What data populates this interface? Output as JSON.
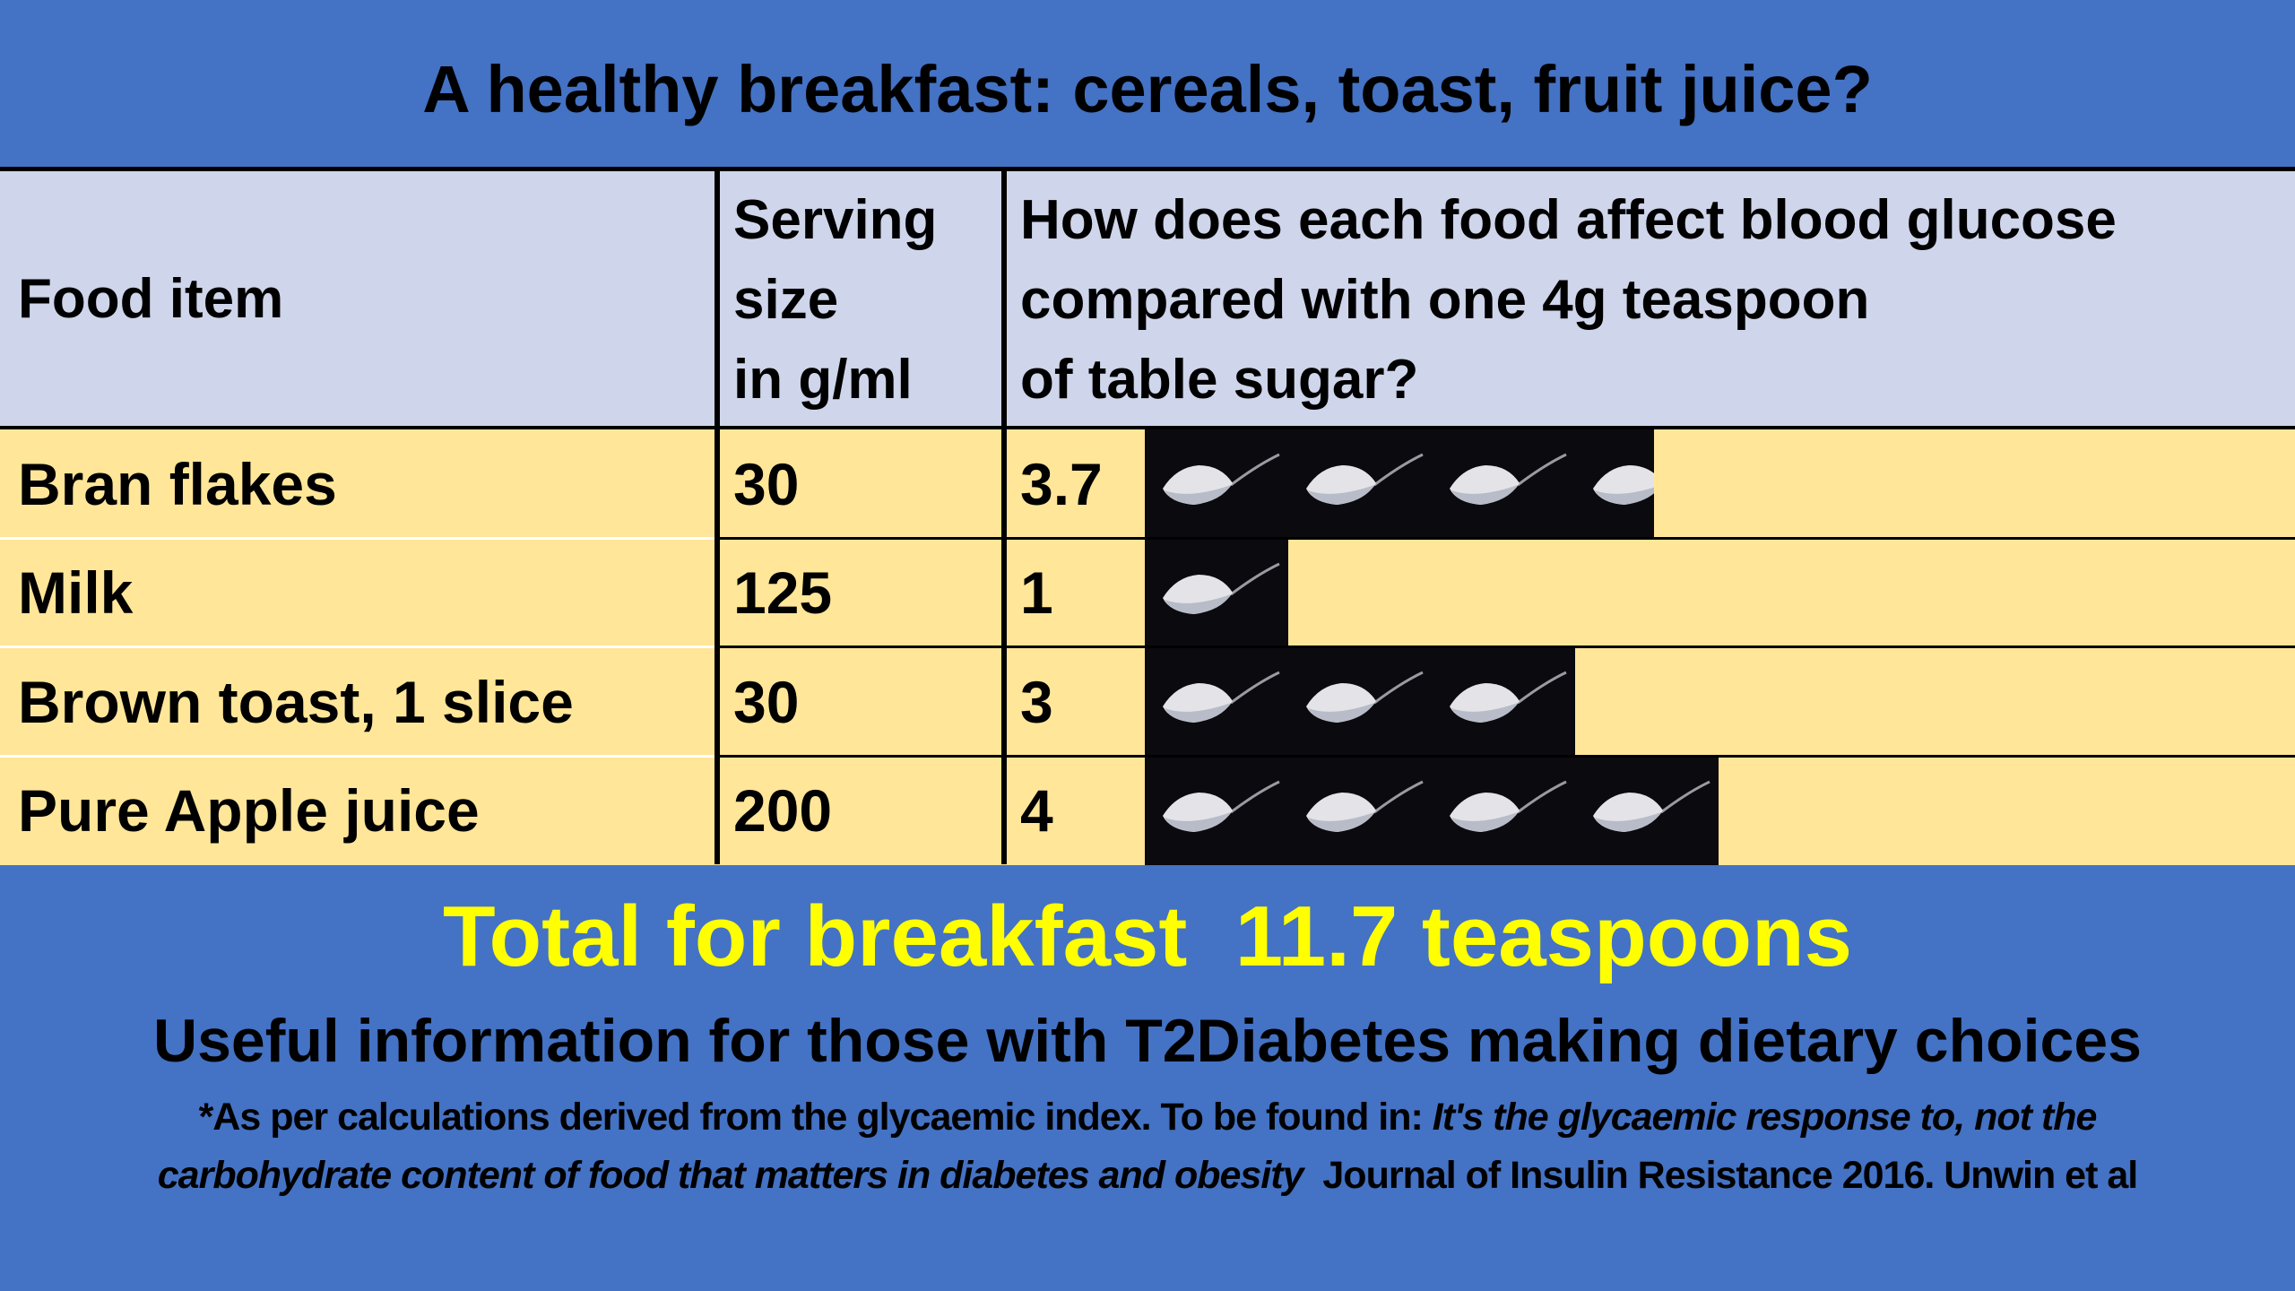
{
  "title": "A healthy breakfast: cereals, toast, fruit juice?",
  "header": {
    "food_item": "Food item",
    "serving_lines": [
      "Serving",
      "size",
      "in g/ml"
    ],
    "effect_lines": [
      "How does each food affect blood glucose",
      "compared with one 4g teaspoon",
      "of table sugar?"
    ]
  },
  "rows": [
    {
      "food": "Bran flakes",
      "serving": "30",
      "teaspoons": "3.7"
    },
    {
      "food": "Milk",
      "serving": "125",
      "teaspoons": "1"
    },
    {
      "food": "Brown toast, 1 slice",
      "serving": "30",
      "teaspoons": "3"
    },
    {
      "food": "Pure Apple juice",
      "serving": "200",
      "teaspoons": "4"
    }
  ],
  "spoon_icon": "sugar-teaspoon-icon",
  "total": "Total for breakfast  11.7 teaspoons",
  "useful": "Useful information for those with T2Diabetes making dietary choices",
  "footnote": {
    "line1_plain": "*As per calculations derived from the glycaemic index. To be found in: ",
    "line1_italic": "It's the glycaemic response to, not the",
    "line2_italic": "carbohydrate content of food that matters in diabetes and obesity",
    "line2_plain": "  Journal of Insulin Resistance 2016. Unwin et al"
  },
  "colors": {
    "background": "#4472C4",
    "header": "#CFD5EA",
    "rows": "#FFE699",
    "total": "#FFFF00"
  }
}
